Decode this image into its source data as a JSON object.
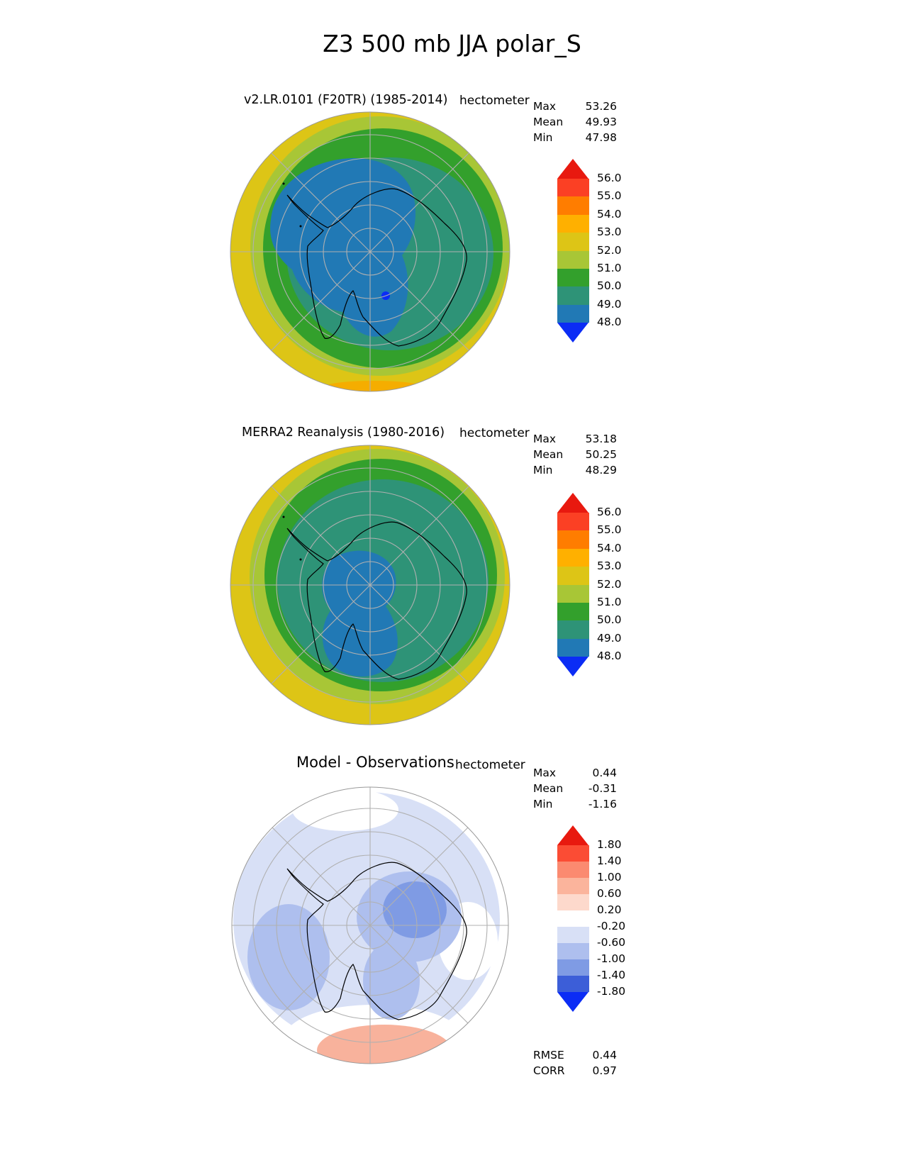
{
  "figure_title": "Z3 500 mb JJA polar_S",
  "labels": {
    "max": "Max",
    "mean": "Mean",
    "min": "Min",
    "rmse": "RMSE",
    "corr": "CORR"
  },
  "chart_data": [
    {
      "type": "heatmap",
      "projection": "south_polar_stereographic",
      "title": "v2.LR.0101 (F20TR) (1985-2014)",
      "units": "hectometer",
      "stats": {
        "max": 53.26,
        "mean": 49.93,
        "min": 47.98
      },
      "contour_levels": [
        48.0,
        49.0,
        50.0,
        51.0,
        52.0,
        53.0,
        54.0,
        55.0,
        56.0
      ],
      "colorbar": {
        "tick_labels": [
          "56.0",
          "55.0",
          "54.0",
          "53.0",
          "52.0",
          "51.0",
          "50.0",
          "49.0",
          "48.0"
        ],
        "segment_colors": [
          "#fb4024",
          "#ff7d00",
          "#ffb000",
          "#ddc516",
          "#a8c636",
          "#33a02c",
          "#2e9377",
          "#2179b5"
        ],
        "extend_colors": {
          "over": "#e8190f",
          "under": "#0b2cf5"
        }
      }
    },
    {
      "type": "heatmap",
      "projection": "south_polar_stereographic",
      "title": "MERRA2 Reanalysis (1980-2016)",
      "units": "hectometer",
      "stats": {
        "max": 53.18,
        "mean": 50.25,
        "min": 48.29
      },
      "contour_levels": [
        48.0,
        49.0,
        50.0,
        51.0,
        52.0,
        53.0,
        54.0,
        55.0,
        56.0
      ],
      "colorbar": {
        "tick_labels": [
          "56.0",
          "55.0",
          "54.0",
          "53.0",
          "52.0",
          "51.0",
          "50.0",
          "49.0",
          "48.0"
        ],
        "segment_colors": [
          "#fb4024",
          "#ff7d00",
          "#ffb000",
          "#ddc516",
          "#a8c636",
          "#33a02c",
          "#2e9377",
          "#2179b5"
        ],
        "extend_colors": {
          "over": "#e8190f",
          "under": "#0b2cf5"
        }
      }
    },
    {
      "type": "heatmap",
      "projection": "south_polar_stereographic",
      "title": "Model - Observations",
      "units": "hectometer",
      "stats": {
        "max": 0.44,
        "mean": -0.31,
        "min": -1.16
      },
      "contour_levels": [
        -1.8,
        -1.4,
        -1.0,
        -0.6,
        -0.2,
        0.2,
        0.6,
        1.0,
        1.4,
        1.8
      ],
      "colorbar": {
        "tick_labels": [
          "1.80",
          "1.40",
          "1.00",
          "0.60",
          "0.20",
          "-0.20",
          "-0.60",
          "-1.00",
          "-1.40",
          "-1.80"
        ],
        "segment_colors": [
          "#fb4c34",
          "#fb8a70",
          "#fbb49c",
          "#fdd9cc",
          "#ffffff",
          "#d8e0f6",
          "#aebfee",
          "#7f9be4",
          "#3c5ed8"
        ],
        "extend_colors": {
          "over": "#e8190f",
          "under": "#0b2cf5"
        }
      },
      "metrics": {
        "rmse": 0.44,
        "corr": 0.97
      }
    }
  ]
}
